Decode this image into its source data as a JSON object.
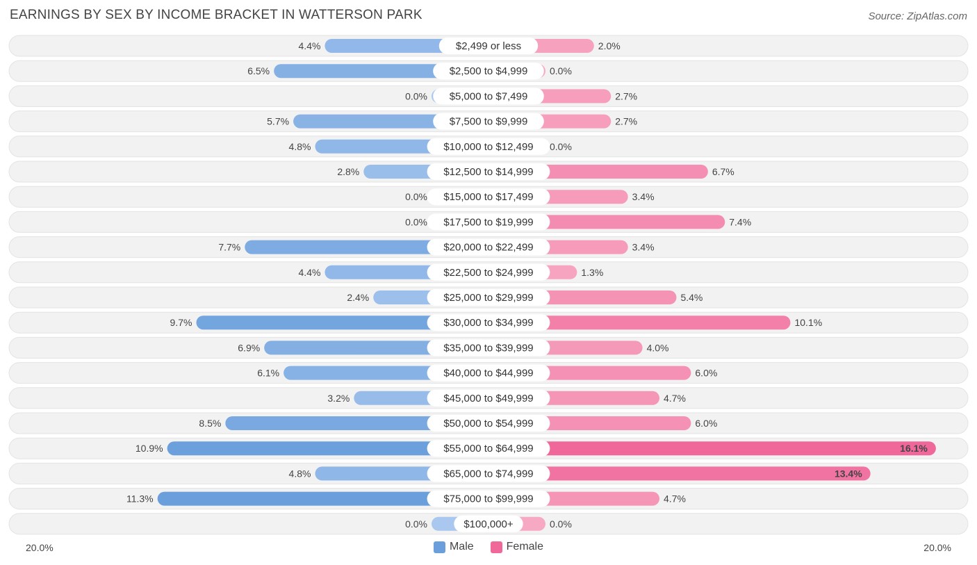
{
  "title": "EARNINGS BY SEX BY INCOME BRACKET IN WATTERSON PARK",
  "source": "Source: ZipAtlas.com",
  "colors": {
    "male": "#6a9fdc",
    "male_light": "#aac8ef",
    "female": "#f0689a",
    "female_light": "#f7a9c3",
    "row_bg": "#f2f2f2"
  },
  "chart_data": {
    "type": "bar",
    "orientation": "horizontal-diverging",
    "title": "EARNINGS BY SEX BY INCOME BRACKET IN WATTERSON PARK",
    "axis_min_label": "20.0%",
    "axis_max_label": "20.0%",
    "xlim": [
      -20,
      20
    ],
    "categories": [
      "$2,499 or less",
      "$2,500 to $4,999",
      "$5,000 to $7,499",
      "$7,500 to $9,999",
      "$10,000 to $12,499",
      "$12,500 to $14,999",
      "$15,000 to $17,499",
      "$17,500 to $19,999",
      "$20,000 to $22,499",
      "$22,500 to $24,999",
      "$25,000 to $29,999",
      "$30,000 to $34,999",
      "$35,000 to $39,999",
      "$40,000 to $44,999",
      "$45,000 to $49,999",
      "$50,000 to $54,999",
      "$55,000 to $64,999",
      "$65,000 to $74,999",
      "$75,000 to $99,999",
      "$100,000+"
    ],
    "series": [
      {
        "name": "Male",
        "values": [
          4.4,
          6.5,
          0.0,
          5.7,
          4.8,
          2.8,
          0.0,
          0.0,
          7.7,
          4.4,
          2.4,
          9.7,
          6.9,
          6.1,
          3.2,
          8.5,
          10.9,
          4.8,
          11.3,
          0.0
        ],
        "labels": [
          "4.4%",
          "6.5%",
          "0.0%",
          "5.7%",
          "4.8%",
          "2.8%",
          "0.0%",
          "0.0%",
          "7.7%",
          "4.4%",
          "2.4%",
          "9.7%",
          "6.9%",
          "6.1%",
          "3.2%",
          "8.5%",
          "10.9%",
          "4.8%",
          "11.3%",
          "0.0%"
        ]
      },
      {
        "name": "Female",
        "values": [
          2.0,
          0.0,
          2.7,
          2.7,
          0.0,
          6.7,
          3.4,
          7.4,
          3.4,
          1.3,
          5.4,
          10.1,
          4.0,
          6.0,
          4.7,
          6.0,
          16.1,
          13.4,
          4.7,
          0.0
        ],
        "labels": [
          "2.0%",
          "0.0%",
          "2.7%",
          "2.7%",
          "0.0%",
          "6.7%",
          "3.4%",
          "7.4%",
          "3.4%",
          "1.3%",
          "5.4%",
          "10.1%",
          "4.0%",
          "6.0%",
          "4.7%",
          "6.0%",
          "16.1%",
          "13.4%",
          "4.7%",
          "0.0%"
        ]
      }
    ]
  },
  "legend": {
    "male_label": "Male",
    "female_label": "Female"
  }
}
